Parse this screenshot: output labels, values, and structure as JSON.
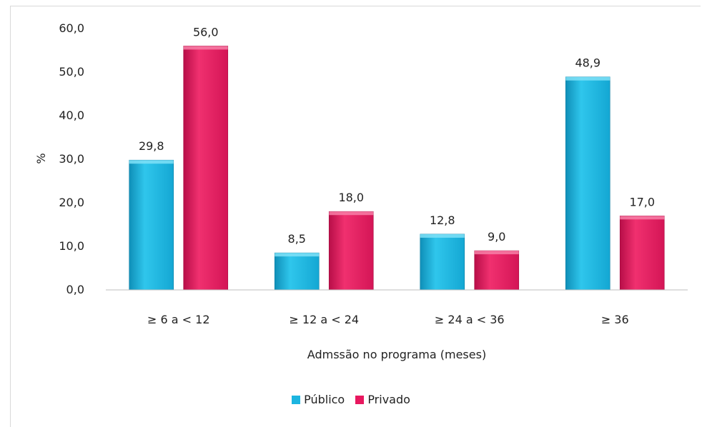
{
  "chart_data": {
    "type": "bar",
    "categories": [
      "≥ 6 a < 12",
      "≥ 12 a < 24",
      "≥ 24 a < 36",
      "≥ 36"
    ],
    "series": [
      {
        "name": "Público",
        "values": [
          29.8,
          8.5,
          12.8,
          48.9
        ],
        "value_labels": [
          "29,8",
          "8,5",
          "12,8",
          "48,9"
        ],
        "color": "#1cb5e0"
      },
      {
        "name": "Privado",
        "values": [
          56.0,
          18.0,
          9.0,
          17.0
        ],
        "value_labels": [
          "56,0",
          "18,0",
          "9,0",
          "17,0"
        ],
        "color": "#e8185f"
      }
    ],
    "ylim": [
      0,
      60
    ],
    "yticks": [
      0,
      10,
      20,
      30,
      40,
      50,
      60
    ],
    "ytick_labels": [
      "0,0",
      "10,0",
      "20,0",
      "30,0",
      "40,0",
      "50,0",
      "60,0"
    ],
    "xlabel": "Admssão no programa (meses)",
    "ylabel": "%",
    "legend_position": "bottom",
    "grid": false
  }
}
